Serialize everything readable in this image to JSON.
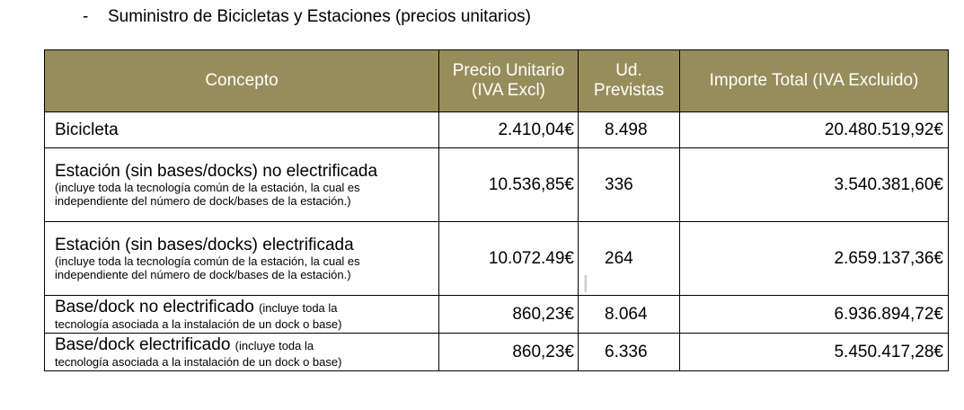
{
  "heading": {
    "bullet": "-",
    "text": "Suministro de Bicicletas y Estaciones (precios unitarios)"
  },
  "table": {
    "headers": {
      "concept": "Concepto",
      "unit_price_line1": "Precio Unitario",
      "unit_price_line2": "(IVA Excl)",
      "units_line1": "Ud.",
      "units_line2": "Previstas",
      "total": "Importe Total (IVA Excluido)"
    },
    "rows": [
      {
        "title": "Bicicleta",
        "desc": "",
        "unit_price": "2.410,04€",
        "units": "8.498",
        "total": "20.480.519,92€"
      },
      {
        "title": "Estación (sin bases/docks) no electrificada",
        "desc": "(incluye toda la tecnología común de la estación, la cual es independiente del número de dock/bases de la estación.)",
        "unit_price": "10.536,85€",
        "units": "336",
        "total": "3.540.381,60€"
      },
      {
        "title": "Estación (sin bases/docks) electrificada",
        "desc": "(incluye toda la tecnología común de la estación, la cual es independiente del número de dock/bases de la estación.)",
        "unit_price": "10.072.49€",
        "units": "264",
        "total": "2.659.137,36€"
      },
      {
        "title": "Base/dock no electrificado",
        "desc_head": "(incluye toda la",
        "desc_tail": "tecnología asociada a la instalación de un dock o base)",
        "unit_price": "860,23€",
        "units": "8.064",
        "total": "6.936.894,72€"
      },
      {
        "title": "Base/dock electrificado",
        "desc_head": "(incluye toda la",
        "desc_tail": "tecnología asociada a la instalación de un dock o base)",
        "unit_price": "860,23€",
        "units": "6.336",
        "total": "5.450.417,28€"
      }
    ]
  },
  "cursor_glyph": "I"
}
